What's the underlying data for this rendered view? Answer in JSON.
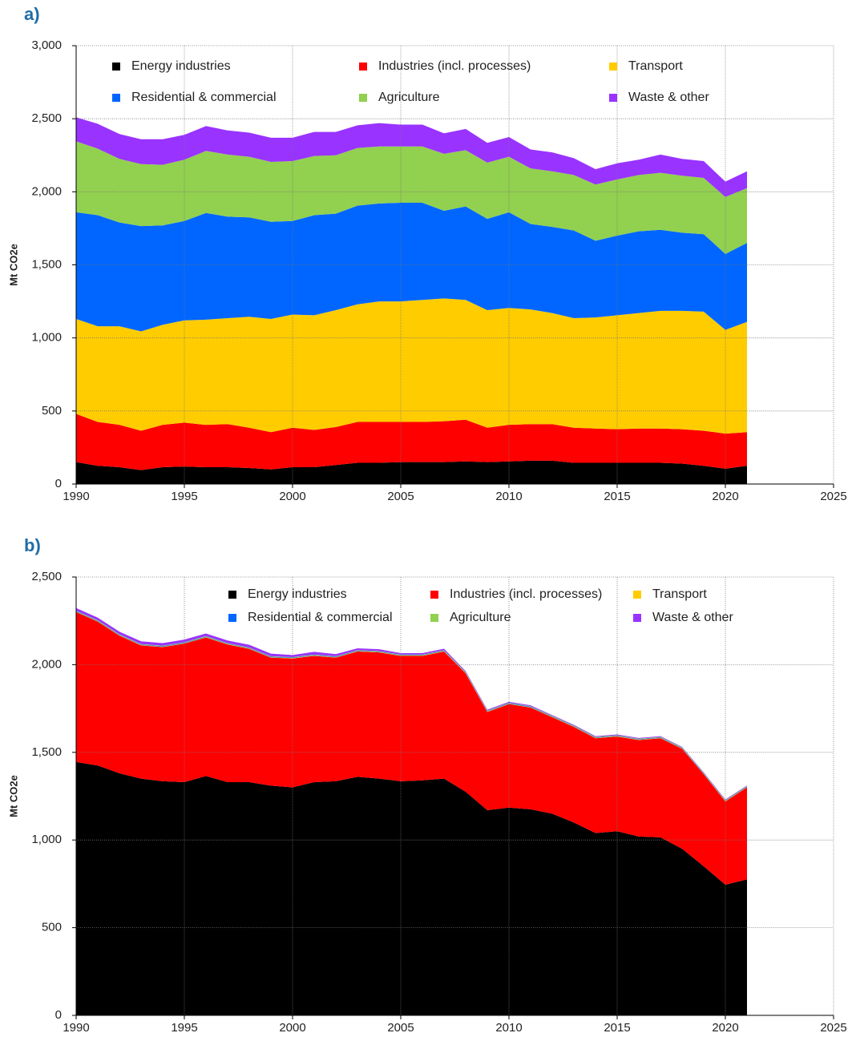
{
  "chart_data": [
    {
      "type": "area",
      "title": "a)",
      "y_label": "Mt CO2e",
      "x": [
        1990,
        1991,
        1992,
        1993,
        1994,
        1995,
        1996,
        1997,
        1998,
        1999,
        2000,
        2001,
        2002,
        2003,
        2004,
        2005,
        2006,
        2007,
        2008,
        2009,
        2010,
        2011,
        2012,
        2013,
        2014,
        2015,
        2016,
        2017,
        2018,
        2019,
        2020,
        2021
      ],
      "series": [
        {
          "name": "Energy industries",
          "color": "#000000",
          "values": [
            150,
            125,
            115,
            95,
            115,
            120,
            115,
            115,
            110,
            100,
            115,
            115,
            130,
            145,
            145,
            150,
            150,
            150,
            155,
            150,
            155,
            160,
            160,
            145,
            145,
            145,
            145,
            145,
            140,
            125,
            105,
            125
          ]
        },
        {
          "name": "Industries (incl. processes)",
          "color": "#ff0000",
          "values": [
            330,
            300,
            290,
            270,
            290,
            300,
            290,
            295,
            275,
            255,
            270,
            255,
            260,
            280,
            280,
            275,
            275,
            280,
            285,
            235,
            250,
            250,
            250,
            240,
            235,
            230,
            235,
            235,
            235,
            240,
            240,
            230
          ]
        },
        {
          "name": "Transport",
          "color": "#ffcc00",
          "values": [
            650,
            655,
            675,
            680,
            685,
            700,
            720,
            725,
            760,
            775,
            775,
            785,
            800,
            805,
            825,
            825,
            835,
            840,
            820,
            805,
            800,
            785,
            760,
            750,
            760,
            780,
            790,
            805,
            810,
            815,
            710,
            755
          ]
        },
        {
          "name": "Residential & commercial",
          "color": "#0066ff",
          "values": [
            730,
            760,
            710,
            720,
            680,
            680,
            730,
            695,
            680,
            665,
            640,
            685,
            660,
            675,
            670,
            675,
            665,
            600,
            640,
            625,
            655,
            585,
            590,
            600,
            525,
            545,
            560,
            555,
            535,
            530,
            520,
            540
          ]
        },
        {
          "name": "Agriculture",
          "color": "#92d050",
          "values": [
            485,
            455,
            435,
            425,
            415,
            420,
            425,
            425,
            415,
            410,
            410,
            405,
            400,
            395,
            390,
            385,
            385,
            390,
            385,
            385,
            380,
            380,
            380,
            380,
            385,
            385,
            385,
            390,
            390,
            385,
            390,
            375
          ]
        },
        {
          "name": "Waste & other",
          "color": "#9933ff",
          "values": [
            165,
            170,
            170,
            170,
            175,
            170,
            170,
            165,
            165,
            165,
            160,
            165,
            160,
            155,
            160,
            150,
            150,
            140,
            145,
            135,
            135,
            130,
            130,
            115,
            105,
            110,
            105,
            125,
            115,
            115,
            105,
            115
          ]
        }
      ],
      "xlim": [
        1990,
        2025
      ],
      "xticks": [
        1990,
        1995,
        2000,
        2005,
        2010,
        2015,
        2020,
        2025
      ],
      "ylim": [
        0,
        3000
      ],
      "yticks": [
        0,
        500,
        {
          "value": 1000,
          "label": "1,000"
        },
        {
          "value": 1500,
          "label": "1,500"
        },
        {
          "value": 2000,
          "label": "2,000"
        },
        {
          "value": 2500,
          "label": "2,500"
        },
        {
          "value": 3000,
          "label": "3,000"
        }
      ],
      "grid": true
    },
    {
      "type": "area",
      "title": "b)",
      "y_label": "Mt CO2e",
      "x": [
        1990,
        1991,
        1992,
        1993,
        1994,
        1995,
        1996,
        1997,
        1998,
        1999,
        2000,
        2001,
        2002,
        2003,
        2004,
        2005,
        2006,
        2007,
        2008,
        2009,
        2010,
        2011,
        2012,
        2013,
        2014,
        2015,
        2016,
        2017,
        2018,
        2019,
        2020,
        2021
      ],
      "series": [
        {
          "name": "Energy industries",
          "color": "#000000",
          "values": [
            1445,
            1425,
            1380,
            1350,
            1335,
            1330,
            1365,
            1330,
            1330,
            1310,
            1300,
            1330,
            1335,
            1360,
            1350,
            1335,
            1340,
            1350,
            1275,
            1170,
            1185,
            1175,
            1150,
            1100,
            1040,
            1050,
            1020,
            1015,
            950,
            850,
            745,
            775
          ]
        },
        {
          "name": "Industries (incl. processes)",
          "color": "#ff0000",
          "values": [
            855,
            820,
            785,
            760,
            765,
            790,
            790,
            785,
            760,
            730,
            735,
            720,
            705,
            715,
            720,
            715,
            710,
            725,
            675,
            560,
            590,
            580,
            550,
            545,
            540,
            540,
            550,
            565,
            570,
            525,
            475,
            525
          ]
        },
        {
          "name": "Transport",
          "color": "#ffcc00",
          "values": [
            2,
            2,
            2,
            2,
            2,
            2,
            2,
            2,
            2,
            2,
            2,
            2,
            2,
            2,
            2,
            2,
            2,
            2,
            2,
            2,
            2,
            2,
            2,
            2,
            2,
            2,
            2,
            2,
            2,
            2,
            2,
            2
          ]
        },
        {
          "name": "Residential & commercial",
          "color": "#0066ff",
          "values": [
            3,
            3,
            3,
            3,
            3,
            3,
            3,
            3,
            3,
            3,
            3,
            3,
            3,
            3,
            3,
            3,
            3,
            3,
            3,
            3,
            3,
            3,
            3,
            3,
            3,
            3,
            3,
            3,
            3,
            3,
            3,
            3
          ]
        },
        {
          "name": "Agriculture",
          "color": "#92d050",
          "values": [
            3,
            3,
            3,
            3,
            3,
            3,
            3,
            3,
            3,
            3,
            3,
            3,
            3,
            3,
            3,
            3,
            3,
            3,
            3,
            3,
            3,
            3,
            3,
            3,
            3,
            3,
            3,
            3,
            3,
            3,
            3,
            3
          ]
        },
        {
          "name": "Waste & other",
          "color": "#9933ff",
          "values": [
            15,
            15,
            15,
            15,
            15,
            15,
            15,
            15,
            15,
            15,
            12,
            15,
            12,
            10,
            10,
            8,
            8,
            8,
            5,
            5,
            5,
            5,
            4,
            4,
            4,
            4,
            4,
            4,
            3,
            3,
            3,
            3
          ]
        }
      ],
      "xlim": [
        1990,
        2025
      ],
      "xticks": [
        1990,
        1995,
        2000,
        2005,
        2010,
        2015,
        2020,
        2025
      ],
      "ylim": [
        0,
        2500
      ],
      "yticks": [
        0,
        500,
        {
          "value": 1000,
          "label": "1,000"
        },
        {
          "value": 1500,
          "label": "1,500"
        },
        {
          "value": 2000,
          "label": "2,000"
        },
        {
          "value": 2500,
          "label": "2,500"
        }
      ],
      "grid": true
    }
  ]
}
